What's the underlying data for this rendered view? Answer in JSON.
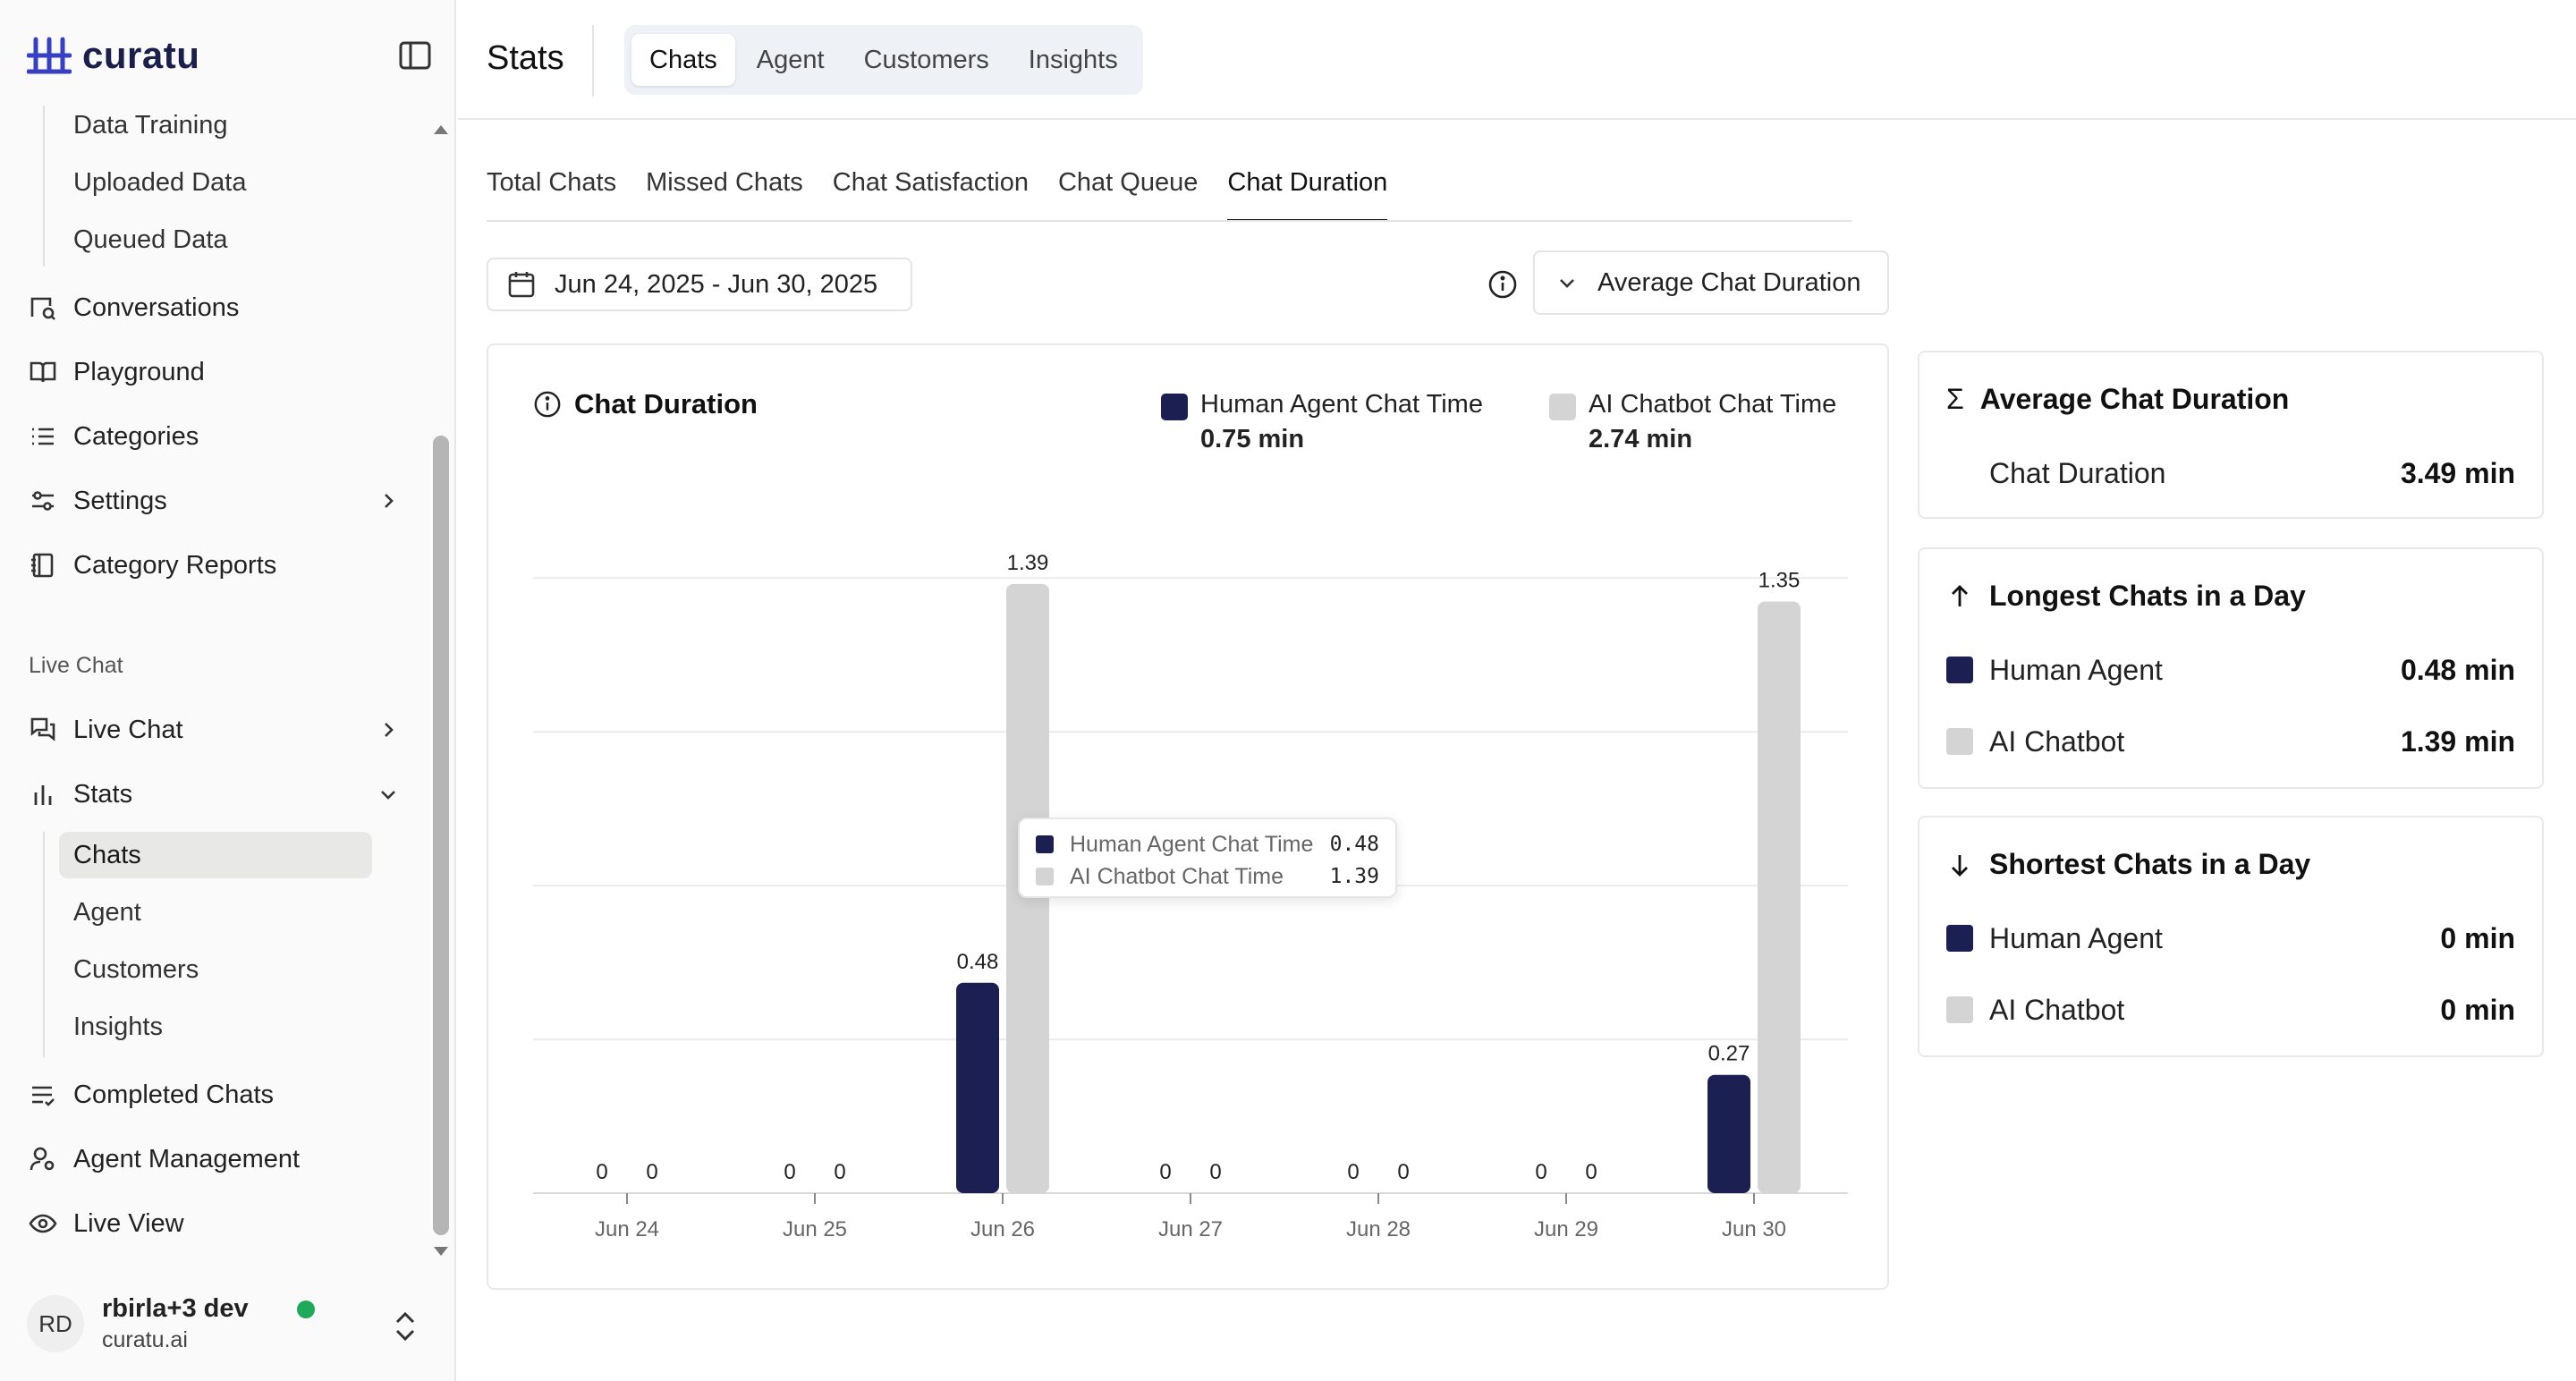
{
  "app": {
    "brand": "curatu"
  },
  "sidebar": {
    "training_items": [
      {
        "label": "Data Training"
      },
      {
        "label": "Uploaded Data"
      },
      {
        "label": "Queued Data"
      }
    ],
    "items": [
      {
        "label": "Conversations"
      },
      {
        "label": "Playground"
      },
      {
        "label": "Categories"
      },
      {
        "label": "Settings"
      },
      {
        "label": "Category Reports"
      }
    ],
    "live_chat_section": "Live Chat",
    "live_items": [
      {
        "label": "Live Chat"
      },
      {
        "label": "Stats"
      }
    ],
    "stats_sub": [
      {
        "label": "Chats"
      },
      {
        "label": "Agent"
      },
      {
        "label": "Customers"
      },
      {
        "label": "Insights"
      }
    ],
    "bottom_items": [
      {
        "label": "Completed Chats"
      },
      {
        "label": "Agent Management"
      },
      {
        "label": "Live View"
      }
    ],
    "user": {
      "initials": "RD",
      "name": "rbirla+3 dev",
      "org": "curatu.ai",
      "status_color": "#1faa59"
    }
  },
  "header": {
    "title": "Stats",
    "tabs": [
      {
        "label": "Chats"
      },
      {
        "label": "Agent"
      },
      {
        "label": "Customers"
      },
      {
        "label": "Insights"
      }
    ]
  },
  "subtabs": [
    {
      "label": "Total Chats"
    },
    {
      "label": "Missed Chats"
    },
    {
      "label": "Chat Satisfaction"
    },
    {
      "label": "Chat Queue"
    },
    {
      "label": "Chat Duration"
    }
  ],
  "filters": {
    "date_range": "Jun 24, 2025 - Jun 30, 2025",
    "metric": "Average Chat Duration"
  },
  "colors": {
    "human": "#1b1f52",
    "ai": "#d4d4d4"
  },
  "chart": {
    "title": "Chat Duration",
    "legend": [
      {
        "name": "Human Agent Chat Time",
        "value": "0.75 min"
      },
      {
        "name": "AI Chatbot Chat Time",
        "value": "2.74 min"
      }
    ],
    "tooltip": {
      "rows": [
        {
          "name": "Human Agent Chat Time",
          "value": "0.48"
        },
        {
          "name": "AI Chatbot Chat Time",
          "value": "1.39"
        }
      ]
    }
  },
  "chart_data": {
    "type": "bar",
    "title": "Chat Duration",
    "categories": [
      "Jun 24",
      "Jun 25",
      "Jun 26",
      "Jun 27",
      "Jun 28",
      "Jun 29",
      "Jun 30"
    ],
    "series": [
      {
        "name": "Human Agent Chat Time",
        "values": [
          0,
          0,
          0.48,
          0,
          0,
          0,
          0.27
        ]
      },
      {
        "name": "AI Chatbot Chat Time",
        "values": [
          0,
          0,
          1.39,
          0,
          0,
          0,
          1.35
        ]
      }
    ],
    "ylim": [
      0,
      1.6
    ],
    "grid": true,
    "xlabel": "",
    "ylabel": ""
  },
  "stats": {
    "average": {
      "title": "Average Chat Duration",
      "rows": [
        {
          "label": "Chat Duration",
          "value": "3.49 min"
        }
      ]
    },
    "longest": {
      "title": "Longest Chats in a Day",
      "rows": [
        {
          "label": "Human Agent",
          "value": "0.48 min"
        },
        {
          "label": "AI Chatbot",
          "value": "1.39 min"
        }
      ]
    },
    "shortest": {
      "title": "Shortest Chats in a Day",
      "rows": [
        {
          "label": "Human Agent",
          "value": "0 min"
        },
        {
          "label": "AI Chatbot",
          "value": "0 min"
        }
      ]
    }
  }
}
